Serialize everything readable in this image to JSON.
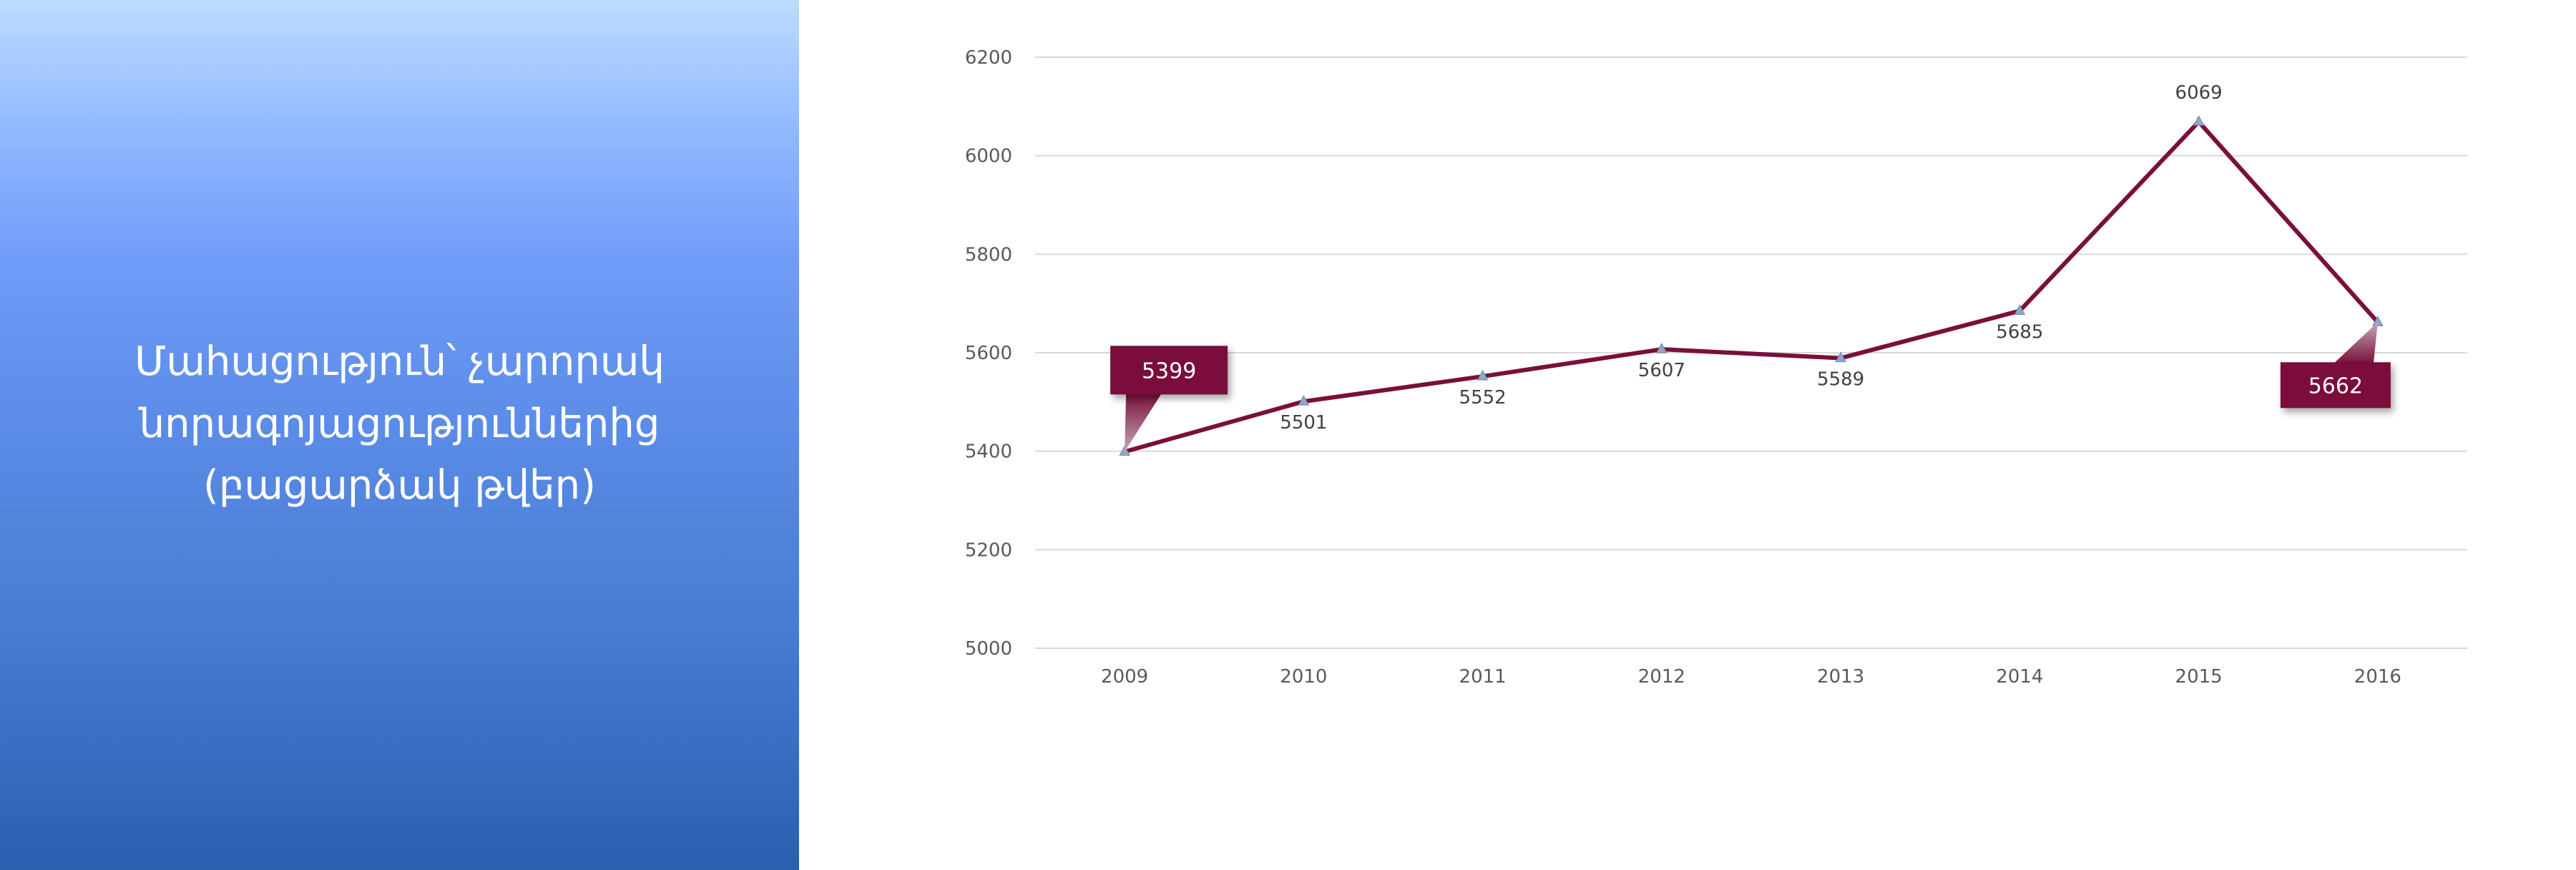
{
  "side_panel": {
    "title_lines": [
      "Մահացություն՝ չարորակ",
      "նորագոյացություններից",
      "(բացարձակ թվեր)"
    ]
  },
  "colors": {
    "line": "#7a0f3a",
    "marker": "#8fa6cc",
    "callout": "#7a0f3a",
    "grid": "#d9d9d9",
    "text": "#595959"
  },
  "chart_data": {
    "type": "line",
    "categories": [
      "2009",
      "2010",
      "2011",
      "2012",
      "2013",
      "2014",
      "2015",
      "2016"
    ],
    "series": [
      {
        "values": [
          5399,
          5501,
          5552,
          5607,
          5589,
          5685,
          6069,
          5662
        ]
      }
    ],
    "data_labels": [
      "5399",
      "5501",
      "5552",
      "5607",
      "5589",
      "5685",
      "6069",
      "5662"
    ],
    "callout_indices": [
      0,
      7
    ],
    "ylim": [
      5000,
      6200
    ],
    "yticks": [
      5000,
      5200,
      5400,
      5600,
      5800,
      6000,
      6200
    ],
    "ytick_labels": [
      "5000",
      "5200",
      "5400",
      "5600",
      "5800",
      "6000",
      "6200"
    ],
    "title": "",
    "xlabel": "",
    "ylabel": "",
    "grid": true,
    "legend": "none"
  }
}
